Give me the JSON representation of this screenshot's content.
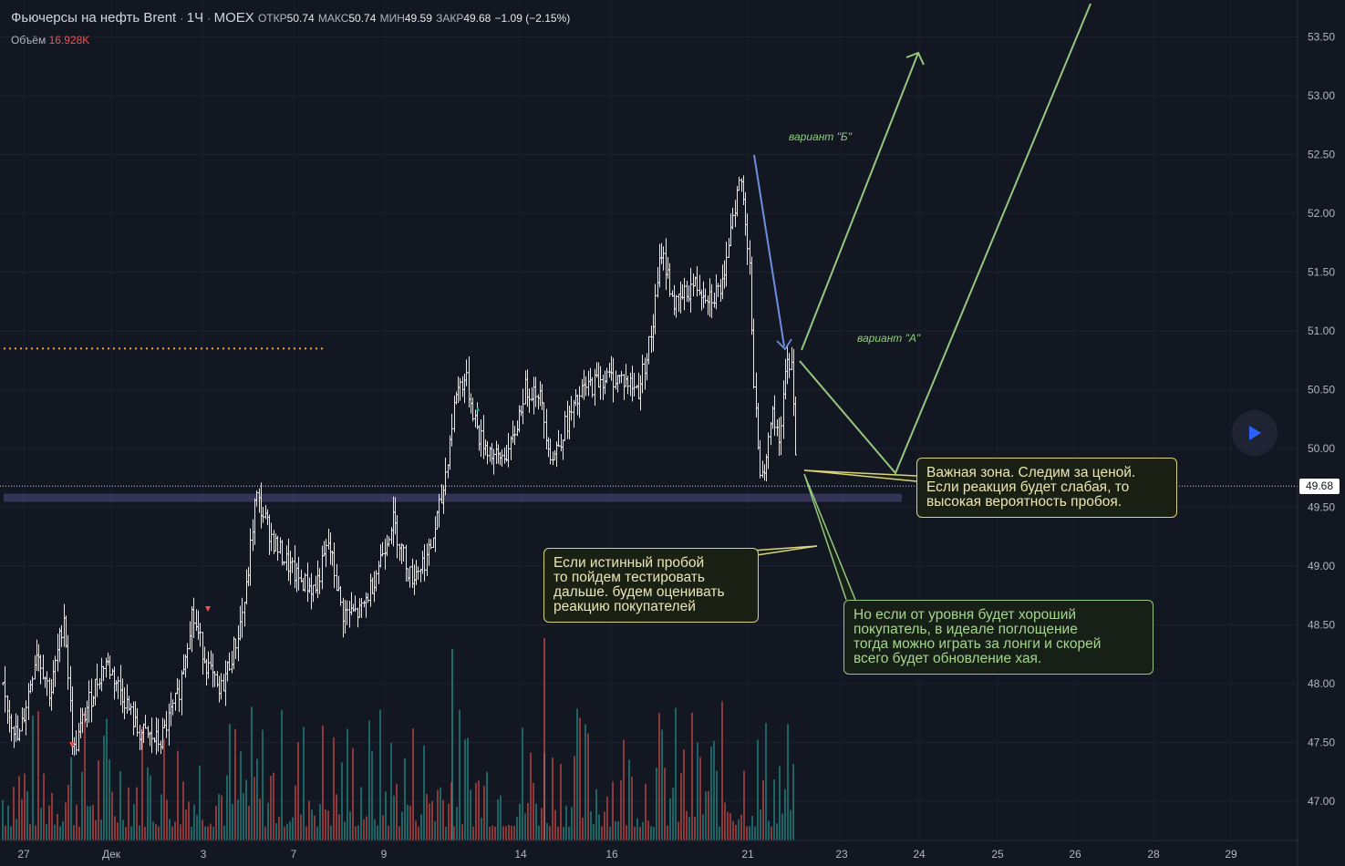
{
  "legend": {
    "symbol": "Фьючерсы на нефть Brent",
    "interval": "1Ч",
    "exchange": "MOEX",
    "open_label": "ОТКР",
    "open": "50.74",
    "high_label": "МАКС",
    "high": "50.74",
    "low_label": "МИН",
    "low": "49.59",
    "close_label": "ЗАКР",
    "close": "49.68",
    "change": "−1.09 (−2.15%)"
  },
  "volume": {
    "label": "Объём",
    "value": "16.928K"
  },
  "current_price": "49.68",
  "annotations": {
    "callout_important": [
      "Важная зона. Следим за ценой.",
      "Если реакция будет слабая, то",
      "высокая вероятность пробоя."
    ],
    "callout_breakout": [
      "Если истинный пробой",
      "то пойдем тестировать",
      "дальше. будем оценивать",
      "реакцию покупателей"
    ],
    "callout_buyer": [
      "Но если от уровня будет хороший",
      "покупатель, в идеале поглощение",
      "тогда можно играть за лонги и скорей",
      "всего будет обновление хая."
    ],
    "variant_b": "вариант \"Б\"",
    "variant_a": "вариант \"А\""
  },
  "colors": {
    "background": "#131722",
    "up_volume": "#26a69a",
    "down_volume": "#ef5350",
    "arrow_green": "#94c77f",
    "arrow_blue": "#6d8fe0",
    "level_orange": "#f0a94a",
    "zone": "#3c3a60"
  },
  "chart_data": {
    "type": "ohlc",
    "title": "Фьючерсы на нефть Brent",
    "y_ticks": [
      "53.50",
      "53.00",
      "52.50",
      "52.00",
      "51.50",
      "51.00",
      "50.50",
      "50.00",
      "49.50",
      "49.00",
      "48.50",
      "48.00",
      "47.50",
      "47.00"
    ],
    "ylim": [
      46.7,
      53.8
    ],
    "x_ticks": [
      "27",
      "Дек",
      "3",
      "7",
      "9",
      "14",
      "16",
      "21",
      "23",
      "24",
      "25",
      "26",
      "28",
      "29"
    ],
    "resistance_level": 50.85,
    "support_zone": [
      49.54,
      49.6
    ],
    "last_close": 49.68,
    "price_path_knots": [
      [
        0,
        48.0
      ],
      [
        20,
        47.5
      ],
      [
        40,
        48.3
      ],
      [
        55,
        47.9
      ],
      [
        70,
        48.6
      ],
      [
        80,
        47.4
      ],
      [
        95,
        47.8
      ],
      [
        115,
        48.2
      ],
      [
        135,
        47.9
      ],
      [
        150,
        47.6
      ],
      [
        175,
        47.5
      ],
      [
        195,
        47.9
      ],
      [
        210,
        48.6
      ],
      [
        225,
        48.2
      ],
      [
        240,
        47.9
      ],
      [
        260,
        48.4
      ],
      [
        270,
        48.8
      ],
      [
        280,
        49.6
      ],
      [
        300,
        49.2
      ],
      [
        325,
        48.9
      ],
      [
        345,
        48.8
      ],
      [
        360,
        49.2
      ],
      [
        375,
        48.6
      ],
      [
        395,
        48.6
      ],
      [
        410,
        48.9
      ],
      [
        430,
        49.4
      ],
      [
        450,
        48.9
      ],
      [
        470,
        49.1
      ],
      [
        485,
        49.6
      ],
      [
        500,
        50.5
      ],
      [
        510,
        50.6
      ],
      [
        525,
        50.1
      ],
      [
        545,
        49.9
      ],
      [
        560,
        50.0
      ],
      [
        575,
        50.5
      ],
      [
        590,
        50.5
      ],
      [
        605,
        49.9
      ],
      [
        620,
        50.2
      ],
      [
        640,
        50.5
      ],
      [
        660,
        50.6
      ],
      [
        680,
        50.6
      ],
      [
        700,
        50.5
      ],
      [
        715,
        51.0
      ],
      [
        725,
        51.7
      ],
      [
        740,
        51.2
      ],
      [
        760,
        51.4
      ],
      [
        780,
        51.3
      ],
      [
        795,
        51.4
      ],
      [
        800,
        51.9
      ],
      [
        812,
        52.3
      ],
      [
        822,
        51.6
      ],
      [
        826,
        50.5
      ],
      [
        835,
        49.7
      ],
      [
        845,
        50.3
      ],
      [
        855,
        50.1
      ],
      [
        862,
        50.7
      ],
      [
        868,
        50.8
      ],
      [
        872,
        50.0
      ],
      [
        874,
        49.75
      ]
    ],
    "volume_bars": "histogram, bar heights roughly 20–160 px, green for up hours, red for down hours"
  }
}
